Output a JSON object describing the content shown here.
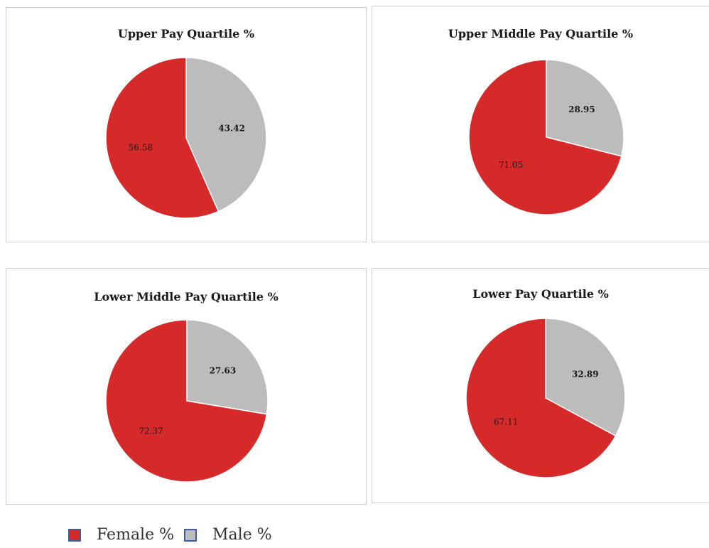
{
  "chart_data": [
    {
      "type": "pie",
      "title": "Upper Pay Quartile %",
      "slices": [
        {
          "name": "Female %",
          "value": 56.58,
          "label": "56.58",
          "color": "#d62a2a"
        },
        {
          "name": "Male %",
          "value": 43.42,
          "label": "43.42",
          "color": "#bcbcbc"
        }
      ]
    },
    {
      "type": "pie",
      "title": "Upper Middle Pay Quartile %",
      "slices": [
        {
          "name": "Female %",
          "value": 71.05,
          "label": "71.05",
          "color": "#d62a2a"
        },
        {
          "name": "Male %",
          "value": 28.95,
          "label": "28.95",
          "color": "#bcbcbc"
        }
      ]
    },
    {
      "type": "pie",
      "title": "Lower Middle Pay Quartile %",
      "slices": [
        {
          "name": "Female %",
          "value": 72.37,
          "label": "72.37",
          "color": "#d62a2a"
        },
        {
          "name": "Male %",
          "value": 27.63,
          "label": "27.63",
          "color": "#bcbcbc"
        }
      ]
    },
    {
      "type": "pie",
      "title": "Lower Pay Quartile %",
      "slices": [
        {
          "name": "Female %",
          "value": 67.11,
          "label": "67.11",
          "color": "#d62a2a"
        },
        {
          "name": "Male %",
          "value": 32.89,
          "label": "32.89",
          "color": "#bcbcbc"
        }
      ]
    }
  ],
  "legend": {
    "placement": "bottom-left",
    "items": [
      {
        "label": "Female %",
        "color": "#d62a2a"
      },
      {
        "label": "Male %",
        "color": "#bcbcbc"
      }
    ]
  }
}
